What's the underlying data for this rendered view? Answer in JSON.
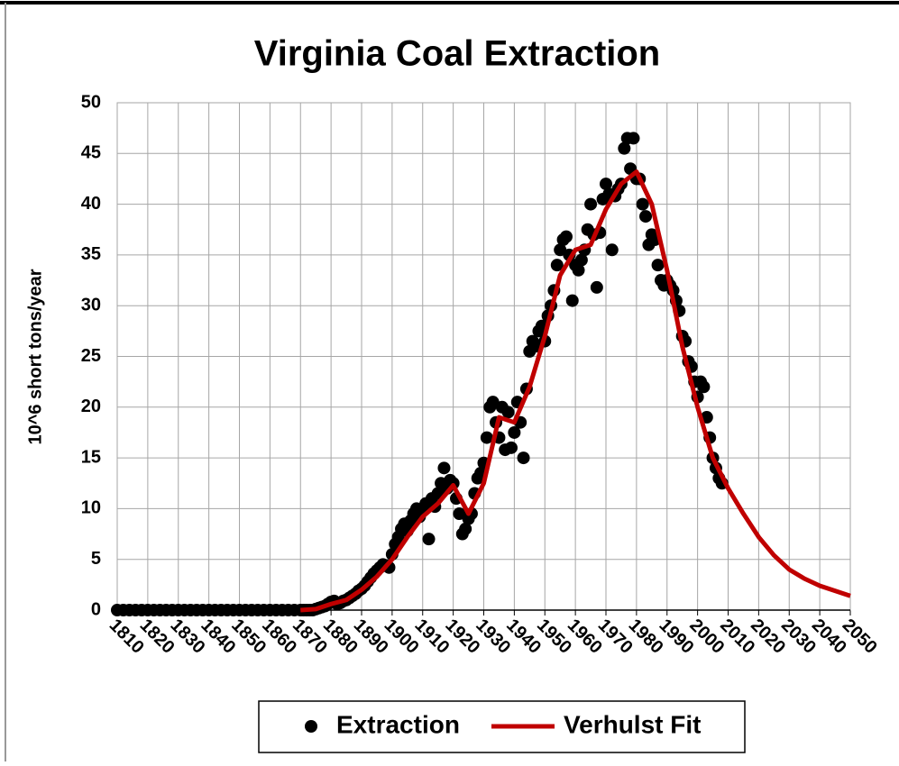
{
  "chart_data": {
    "type": "scatter",
    "title": "Virginia Coal Extraction",
    "ylabel": "10^6 short tons/year",
    "xlim": [
      1810,
      2050
    ],
    "xticks": [
      1810,
      1820,
      1830,
      1840,
      1850,
      1860,
      1870,
      1880,
      1890,
      1900,
      1910,
      1920,
      1930,
      1940,
      1950,
      1960,
      1970,
      1980,
      1990,
      2000,
      2010,
      2020,
      2030,
      2040,
      2050
    ],
    "ylim": [
      0,
      50
    ],
    "yticks": [
      0,
      5,
      10,
      15,
      20,
      25,
      30,
      35,
      40,
      45,
      50
    ],
    "grid": true,
    "legend": "bottom",
    "series": [
      {
        "name": "Extraction",
        "type": "scatter",
        "color": "#000000",
        "x": [
          1810,
          1812,
          1814,
          1816,
          1818,
          1820,
          1822,
          1824,
          1826,
          1828,
          1830,
          1832,
          1834,
          1836,
          1838,
          1840,
          1842,
          1844,
          1846,
          1848,
          1850,
          1852,
          1854,
          1856,
          1858,
          1860,
          1862,
          1864,
          1866,
          1868,
          1870,
          1871,
          1872,
          1873,
          1874,
          1875,
          1876,
          1877,
          1878,
          1879,
          1880,
          1881,
          1882,
          1883,
          1884,
          1885,
          1886,
          1887,
          1888,
          1889,
          1890,
          1891,
          1892,
          1893,
          1894,
          1895,
          1896,
          1897,
          1898,
          1899,
          1900,
          1901,
          1902,
          1903,
          1904,
          1905,
          1906,
          1907,
          1908,
          1909,
          1910,
          1911,
          1912,
          1913,
          1914,
          1915,
          1916,
          1917,
          1918,
          1919,
          1920,
          1921,
          1922,
          1923,
          1924,
          1925,
          1926,
          1927,
          1928,
          1929,
          1930,
          1931,
          1932,
          1933,
          1934,
          1935,
          1936,
          1937,
          1938,
          1939,
          1940,
          1941,
          1942,
          1943,
          1944,
          1945,
          1946,
          1947,
          1948,
          1949,
          1950,
          1951,
          1952,
          1953,
          1954,
          1955,
          1956,
          1957,
          1958,
          1959,
          1960,
          1961,
          1962,
          1963,
          1964,
          1965,
          1966,
          1967,
          1968,
          1969,
          1970,
          1971,
          1972,
          1973,
          1974,
          1975,
          1976,
          1977,
          1978,
          1979,
          1980,
          1981,
          1982,
          1983,
          1984,
          1985,
          1986,
          1987,
          1988,
          1989,
          1990,
          1991,
          1992,
          1993,
          1994,
          1995,
          1996,
          1997,
          1998,
          1999,
          2000,
          2001,
          2002,
          2003,
          2004,
          2005,
          2006,
          2007,
          2008
        ],
        "values": [
          0,
          0,
          0,
          0,
          0,
          0,
          0,
          0,
          0,
          0,
          0,
          0,
          0,
          0,
          0,
          0,
          0,
          0,
          0,
          0,
          0,
          0,
          0,
          0,
          0,
          0,
          0,
          0,
          0,
          0,
          0,
          0,
          0,
          0,
          0,
          0.1,
          0.2,
          0.3,
          0.4,
          0.6,
          0.8,
          0.9,
          0.6,
          0.7,
          0.9,
          1.0,
          1.2,
          1.4,
          1.6,
          1.9,
          2.1,
          2.4,
          2.8,
          3.2,
          3.6,
          3.9,
          4.2,
          4.5,
          4.4,
          4.2,
          5.5,
          6.5,
          7.2,
          8.0,
          8.5,
          7.8,
          8.8,
          9.5,
          10.0,
          9.2,
          9.8,
          10.5,
          7.0,
          11.0,
          10.2,
          11.5,
          12.5,
          14.0,
          12.0,
          12.8,
          12.5,
          11.0,
          9.5,
          7.5,
          8.0,
          9.0,
          9.5,
          11.5,
          13.0,
          13.5,
          14.5,
          17.0,
          20.0,
          20.5,
          18.5,
          17.0,
          20.0,
          15.8,
          19.5,
          16.0,
          17.5,
          20.5,
          18.5,
          15.0,
          21.8,
          25.5,
          26.5,
          26.0,
          27.5,
          28.0,
          26.5,
          29.0,
          30.0,
          31.5,
          34.0,
          35.5,
          36.5,
          36.8,
          35.0,
          30.5,
          34.0,
          33.5,
          34.5,
          35.5,
          37.5,
          40.0,
          37.0,
          31.8,
          37.2,
          40.5,
          42.0,
          41.0,
          35.5,
          40.8,
          41.5,
          42.0,
          45.5,
          46.5,
          43.5,
          46.5,
          42.5,
          42.5,
          40.0,
          38.8,
          36.0,
          37.0,
          36.5,
          34.0,
          32.5,
          32.0,
          32.5,
          32.0,
          31.5,
          30.5,
          29.5,
          27.0,
          26.5,
          24.5,
          24.0,
          22.5,
          21.0,
          22.5,
          22.0,
          19.0,
          17.0,
          15.0,
          14.0,
          13.0,
          12.5
        ]
      },
      {
        "name": "Verhulst Fit",
        "type": "line",
        "color": "#c00000",
        "x": [
          1870,
          1875,
          1880,
          1885,
          1890,
          1895,
          1900,
          1905,
          1910,
          1915,
          1920,
          1925,
          1930,
          1935,
          1940,
          1945,
          1950,
          1955,
          1960,
          1965,
          1970,
          1975,
          1980,
          1985,
          1990,
          1995,
          2000,
          2005,
          2010,
          2015,
          2020,
          2025,
          2030,
          2035,
          2040,
          2045,
          2050
        ],
        "values": [
          0,
          0.1,
          0.6,
          1.0,
          2.0,
          3.3,
          5.0,
          7.2,
          9.2,
          10.5,
          12.3,
          9.5,
          12.5,
          19.0,
          18.5,
          22,
          27,
          33,
          35.5,
          36,
          39.5,
          42,
          43.2,
          40,
          33.5,
          26,
          20,
          15,
          12,
          9.5,
          7.2,
          5.4,
          4.0,
          3.1,
          2.4,
          1.9,
          1.4
        ]
      }
    ]
  }
}
